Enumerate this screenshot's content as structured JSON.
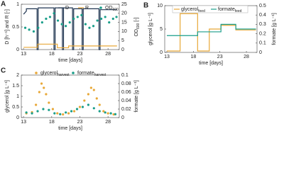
{
  "chart_data": [
    {
      "type": "line",
      "label": "A",
      "xlabel": "time [days]",
      "ylabel": "D [h⁻¹] and R [-]",
      "y2label": [
        "OD",
        "600",
        " [-]"
      ],
      "xlim": [
        12.6,
        30
      ],
      "xticks": [
        13,
        18,
        23,
        28
      ],
      "ylim": [
        0,
        1
      ],
      "yticks": [
        0,
        0.5,
        1
      ],
      "y2lim": [
        0,
        25
      ],
      "y2ticks": [
        0,
        5,
        10,
        15,
        20,
        25
      ],
      "legend": "upper right",
      "series": [
        {
          "name": [
            "D"
          ],
          "type": "line",
          "color": "#1f3450",
          "x": [
            13,
            13.5,
            13.5,
            15.4,
            15.4,
            15.6,
            15.6,
            18.4,
            18.4,
            18.6,
            18.6,
            19.9,
            19.9,
            20.1,
            20.1,
            21.7,
            21.7,
            21.9,
            21.9,
            23.4,
            23.4,
            23.6,
            23.6,
            26.4,
            26.4,
            26.6,
            26.6,
            29.6
          ],
          "values": [
            0.78,
            0.85,
            0.9,
            0.9,
            0,
            0,
            0.92,
            0.92,
            0,
            0,
            0.92,
            0.92,
            0,
            0,
            0.92,
            0.92,
            0,
            0,
            0.9,
            0.9,
            0,
            0,
            0.9,
            0.9,
            0,
            0,
            0.88,
            0.88
          ]
        },
        {
          "name": [
            "R"
          ],
          "type": "line",
          "color": "#e8a838",
          "x": [
            13,
            15.5,
            15.5,
            19,
            19,
            21,
            21,
            29.6
          ],
          "values": [
            0.05,
            0.05,
            0.12,
            0.12,
            0.04,
            0.04,
            0.08,
            0.08
          ]
        },
        {
          "name": [
            "OD",
            "600"
          ],
          "type": "scatter",
          "color": "#1a9e8a",
          "axis": "y2",
          "x": [
            13.3,
            14,
            14.8,
            15.6,
            16.3,
            17,
            17.7,
            18.4,
            19.1,
            19.8,
            20.5,
            21.2,
            21.9,
            22.6,
            23.3,
            24,
            24.7,
            25.4,
            26.1,
            26.8,
            27.5,
            28.2,
            28.9,
            29.5
          ],
          "values": [
            12,
            11,
            10,
            12,
            15,
            17,
            18,
            20,
            16,
            14,
            13,
            15,
            17,
            18,
            19,
            14,
            12,
            13,
            16,
            17,
            18,
            15,
            17,
            18
          ]
        }
      ]
    },
    {
      "type": "line",
      "label": "B",
      "xlabel": "time [days]",
      "ylabel": "glycerol [g L⁻¹]",
      "y2label": [
        "formate [g L⁻¹]"
      ],
      "xlim": [
        12.6,
        30
      ],
      "xticks": [
        13,
        18,
        23,
        28
      ],
      "ylim": [
        0,
        10
      ],
      "yticks": [
        0,
        5,
        10
      ],
      "y2lim": [
        0,
        0.5
      ],
      "y2ticks": [
        0,
        0.1,
        0.2,
        0.3,
        0.4,
        0.5
      ],
      "legend": "upper center",
      "series": [
        {
          "name": [
            "glycerol",
            "feed"
          ],
          "type": "line",
          "color": "#e8a838",
          "x": [
            13,
            15.5,
            15.5,
            18.8,
            18.8,
            21,
            21,
            23.2,
            23.2,
            26,
            26,
            29.8
          ],
          "values": [
            0.3,
            0.3,
            8.3,
            8.3,
            0.3,
            0.3,
            5,
            5,
            5.8,
            5.8,
            4.8,
            4.8
          ]
        },
        {
          "name": [
            "formate",
            "feed"
          ],
          "type": "line",
          "color": "#1a9e8a",
          "axis": "y2",
          "x": [
            13,
            18.8,
            18.8,
            23.2,
            23.2,
            26,
            26,
            29.8
          ],
          "values": [
            0.18,
            0.18,
            0.22,
            0.22,
            0.3,
            0.3,
            0.25,
            0.25
          ]
        }
      ]
    },
    {
      "type": "scatter",
      "label": "C",
      "xlabel": "time [days]",
      "ylabel": "glycerol [g L⁻¹]",
      "y2label": [
        "formate [g L⁻¹]"
      ],
      "xlim": [
        12.6,
        30
      ],
      "xticks": [
        13,
        18,
        23,
        28
      ],
      "ylim": [
        0,
        2
      ],
      "yticks": [
        0,
        0.5,
        1,
        1.5,
        2
      ],
      "y2lim": [
        0,
        0.1
      ],
      "y2ticks": [
        0,
        0.02,
        0.04,
        0.06,
        0.08,
        0.1
      ],
      "legend": "upper center",
      "series": [
        {
          "name": [
            "glycerol",
            "harvest"
          ],
          "type": "scatter",
          "color": "#e8a838",
          "x": [
            13.5,
            14.5,
            15.2,
            15.8,
            16.2,
            16.6,
            17,
            17.5,
            18.2,
            19,
            20,
            21,
            22,
            23,
            23.8,
            24.5,
            25,
            25.5,
            26,
            26.5,
            27.2,
            28,
            29
          ],
          "values": [
            0.2,
            0.25,
            0.6,
            1.2,
            1.6,
            1.4,
            1.1,
            0.7,
            0.4,
            0.2,
            0.15,
            0.2,
            0.3,
            0.5,
            0.8,
            1.1,
            1.4,
            1.3,
            0.9,
            0.6,
            0.3,
            0.2,
            0.15
          ]
        },
        {
          "name": [
            "formate",
            "harvest"
          ],
          "type": "scatter",
          "color": "#1a9e8a",
          "axis": "y2",
          "x": [
            13.5,
            14.5,
            15.5,
            16.5,
            17.5,
            18.5,
            19.5,
            20.5,
            21.5,
            22.5,
            23.5,
            24.5,
            25.5,
            26.5,
            27.5,
            28.5,
            29.3
          ],
          "values": [
            0.012,
            0.01,
            0.015,
            0.02,
            0.018,
            0.01,
            0.008,
            0.012,
            0.015,
            0.02,
            0.025,
            0.03,
            0.022,
            0.015,
            0.012,
            0.01,
            0.008
          ]
        }
      ]
    }
  ]
}
